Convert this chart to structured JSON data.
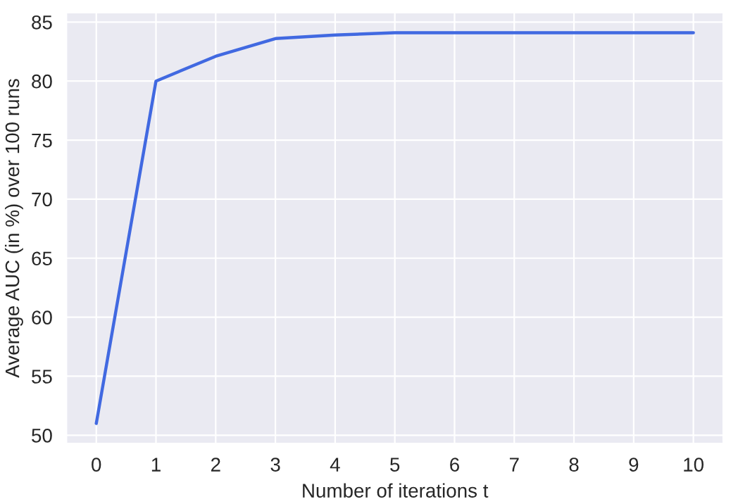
{
  "chart_data": {
    "type": "line",
    "xlabel": "Number of iterations t",
    "ylabel": "Average AUC (in %) over 100 runs",
    "x": [
      0,
      1,
      2,
      3,
      4,
      5,
      6,
      7,
      8,
      9,
      10
    ],
    "series": [
      {
        "color": "#4169e1",
        "values": [
          51,
          80,
          82.1,
          83.6,
          83.9,
          84.1,
          84.1,
          84.1,
          84.1,
          84.1,
          84.1
        ]
      }
    ],
    "xlim": [
      -0.5,
      10.5
    ],
    "ylim": [
      49.3,
      85.8
    ],
    "xticks": [
      0,
      1,
      2,
      3,
      4,
      5,
      6,
      7,
      8,
      9,
      10
    ],
    "yticks": [
      50,
      55,
      60,
      65,
      70,
      75,
      80,
      85
    ],
    "grid": true,
    "legend": false
  }
}
